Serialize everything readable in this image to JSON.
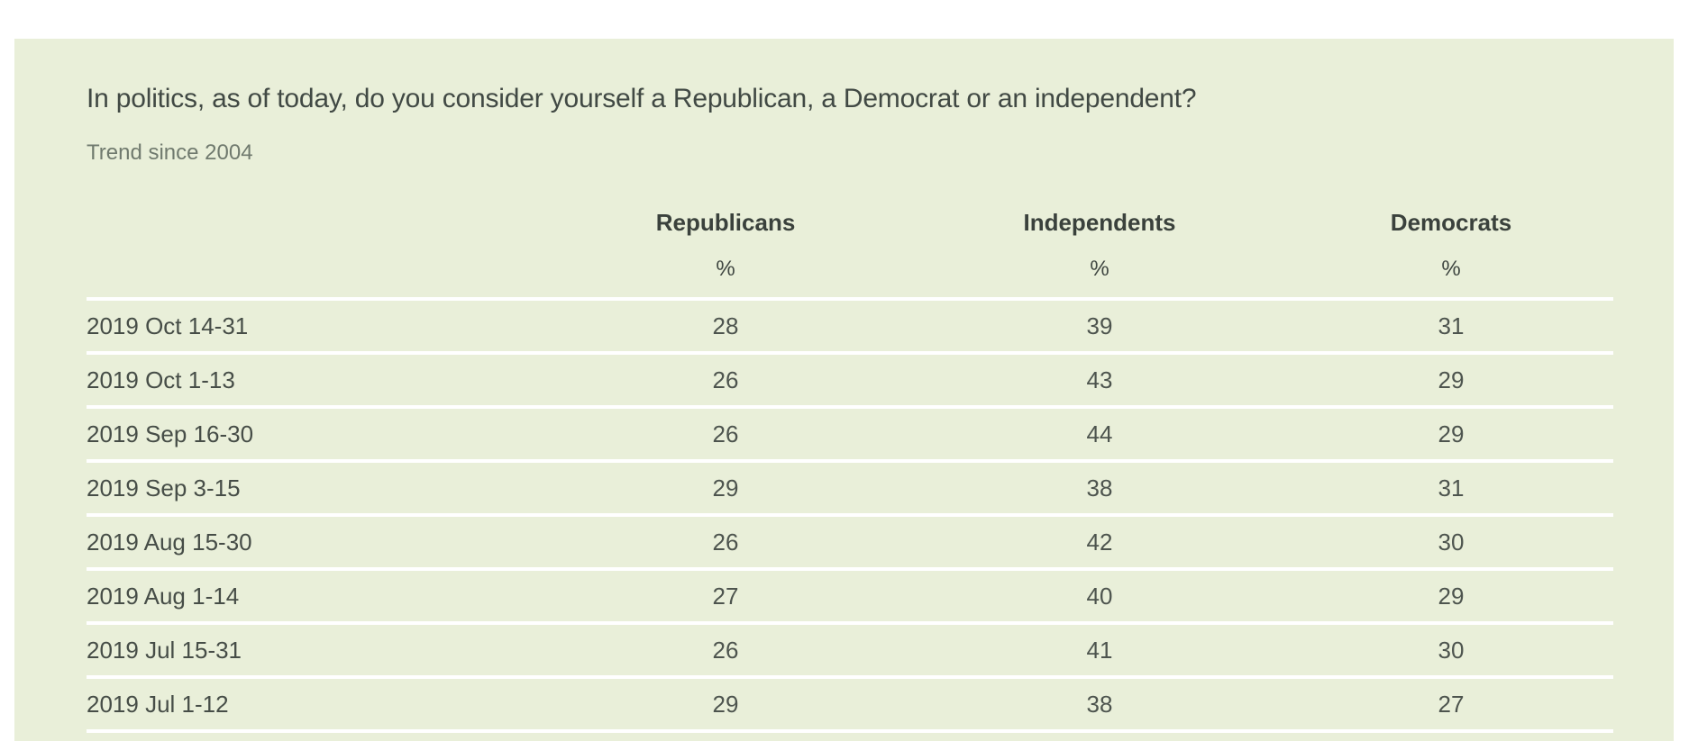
{
  "colors": {
    "card_background": "#e9efd9",
    "divider": "#ffffff",
    "title_text": "#414944",
    "subtitle_text": "#707a6e",
    "header_text": "#3a413c",
    "value_text": "#4d544e"
  },
  "chart_data": {
    "type": "table",
    "title": "In politics, as of today, do you consider yourself a Republican, a Democrat or an independent?",
    "subtitle": "Trend since 2004",
    "columns": [
      "",
      "Republicans",
      "Independents",
      "Democrats"
    ],
    "unit": "%",
    "rows": [
      [
        "2019 Oct 14-31",
        28,
        39,
        31
      ],
      [
        "2019 Oct 1-13",
        26,
        43,
        29
      ],
      [
        "2019 Sep 16-30",
        26,
        44,
        29
      ],
      [
        "2019 Sep 3-15",
        29,
        38,
        31
      ],
      [
        "2019 Aug 15-30",
        26,
        42,
        30
      ],
      [
        "2019 Aug 1-14",
        27,
        40,
        29
      ],
      [
        "2019 Jul 15-31",
        26,
        41,
        30
      ],
      [
        "2019 Jul 1-12",
        29,
        38,
        27
      ]
    ]
  }
}
